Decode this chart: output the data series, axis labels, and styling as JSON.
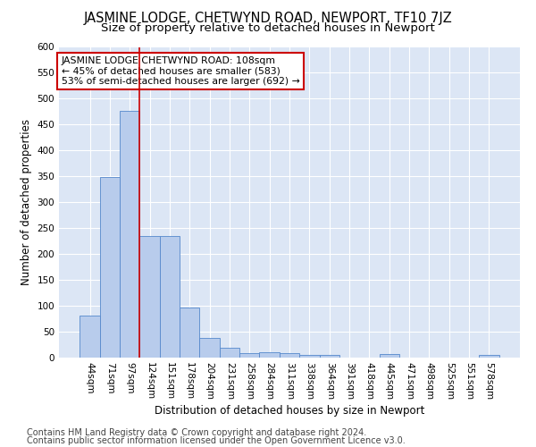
{
  "title": "JASMINE LODGE, CHETWYND ROAD, NEWPORT, TF10 7JZ",
  "subtitle": "Size of property relative to detached houses in Newport",
  "xlabel": "Distribution of detached houses by size in Newport",
  "ylabel": "Number of detached properties",
  "categories": [
    "44sqm",
    "71sqm",
    "97sqm",
    "124sqm",
    "151sqm",
    "178sqm",
    "204sqm",
    "231sqm",
    "258sqm",
    "284sqm",
    "311sqm",
    "338sqm",
    "364sqm",
    "391sqm",
    "418sqm",
    "445sqm",
    "471sqm",
    "498sqm",
    "525sqm",
    "551sqm",
    "578sqm"
  ],
  "values": [
    82,
    348,
    477,
    234,
    234,
    97,
    38,
    19,
    8,
    10,
    8,
    6,
    6,
    0,
    0,
    7,
    0,
    0,
    0,
    0,
    6
  ],
  "bar_color": "#b8ccec",
  "bar_edge_color": "#5588cc",
  "background_color": "#dce6f5",
  "grid_color": "#ffffff",
  "vline_x": 2.5,
  "vline_color": "#cc0000",
  "annotation_text": "JASMINE LODGE CHETWYND ROAD: 108sqm\n← 45% of detached houses are smaller (583)\n53% of semi-detached houses are larger (692) →",
  "annotation_box_color": "#ffffff",
  "annotation_box_edge": "#cc0000",
  "ylim": [
    0,
    600
  ],
  "yticks": [
    0,
    50,
    100,
    150,
    200,
    250,
    300,
    350,
    400,
    450,
    500,
    550,
    600
  ],
  "footer1": "Contains HM Land Registry data © Crown copyright and database right 2024.",
  "footer2": "Contains public sector information licensed under the Open Government Licence v3.0.",
  "title_fontsize": 10.5,
  "subtitle_fontsize": 9.5,
  "label_fontsize": 8.5,
  "tick_fontsize": 7.5,
  "annotation_fontsize": 7.8,
  "footer_fontsize": 7
}
